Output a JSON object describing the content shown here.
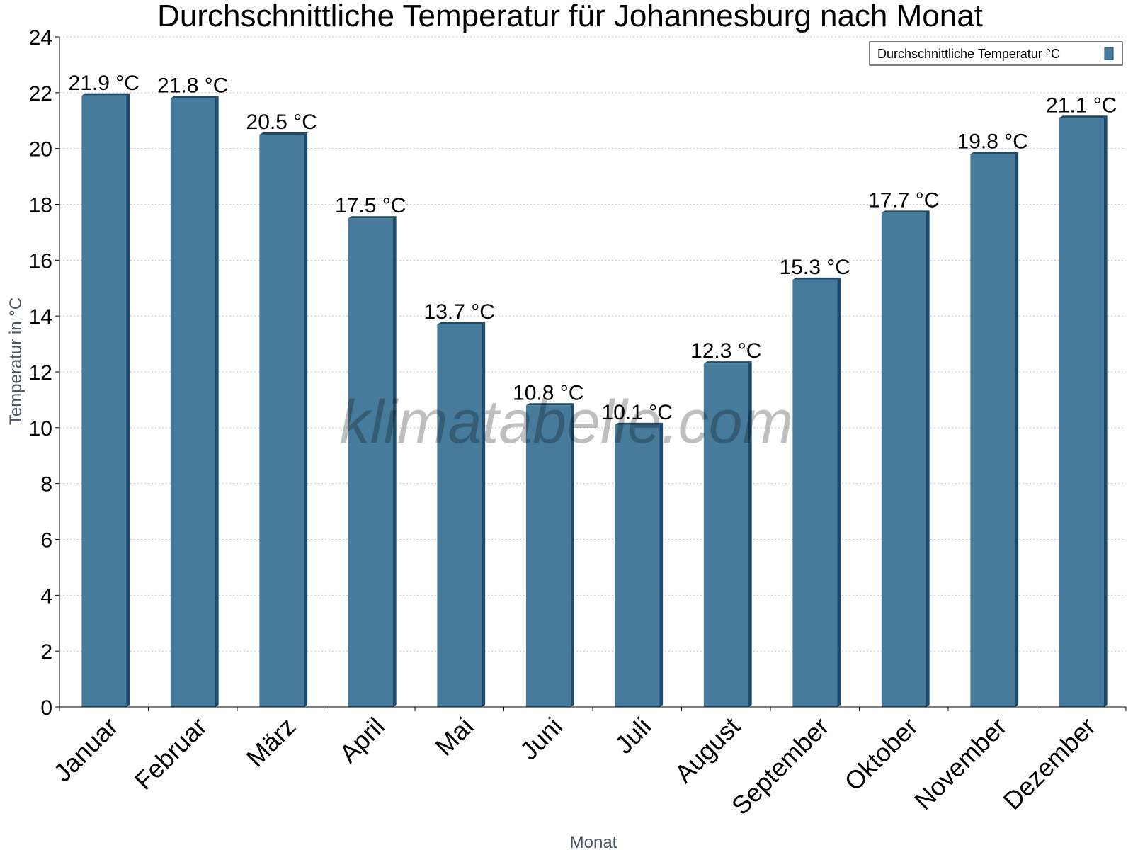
{
  "chart_data": {
    "type": "bar",
    "title": "Durchschnittliche Temperatur für Johannesburg nach Monat",
    "xlabel": "Monat",
    "ylabel": "Temperatur in °C",
    "categories": [
      "Januar",
      "Februar",
      "März",
      "April",
      "Mai",
      "Juni",
      "Juli",
      "August",
      "September",
      "Oktober",
      "November",
      "Dezember"
    ],
    "series": [
      {
        "name": "Durchschnittliche Temperatur °C",
        "values": [
          21.9,
          21.8,
          20.5,
          17.5,
          13.7,
          10.8,
          10.1,
          12.3,
          15.3,
          17.7,
          19.8,
          21.1
        ],
        "color": "#467b9c"
      }
    ],
    "data_labels": [
      "21.9 °C",
      "21.8 °C",
      "20.5 °C",
      "17.5 °C",
      "13.7 °C",
      "10.8 °C",
      "10.1 °C",
      "12.3 °C",
      "15.3 °C",
      "17.7 °C",
      "19.8 °C",
      "21.1 °C"
    ],
    "yticks": [
      "0",
      "2",
      "4",
      "6",
      "8",
      "10",
      "12",
      "14",
      "16",
      "18",
      "20",
      "22",
      "24"
    ],
    "ylim": [
      0,
      24
    ],
    "grid": true,
    "legend_position": "top-right",
    "watermark": "klimatabelle.com",
    "colors": {
      "bar": "#467b9c",
      "bar_edge": "#1b4a6a",
      "grid": "#c8c8c8"
    }
  }
}
